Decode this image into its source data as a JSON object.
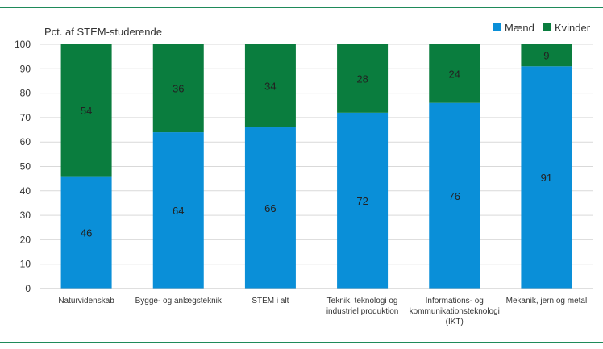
{
  "chart_data": {
    "type": "bar",
    "stacked": true,
    "title": "Pct. af STEM-studerende",
    "categories": [
      [
        "Naturvidenskab"
      ],
      [
        "Bygge- og anlægsteknik"
      ],
      [
        "STEM i alt"
      ],
      [
        "Teknik, teknologi og",
        "industriel produktion"
      ],
      [
        "Informations- og",
        "kommunikationsteknologi",
        "(IKT)"
      ],
      [
        "Mekanik, jern og metal"
      ]
    ],
    "series": [
      {
        "name": "Mænd",
        "color": "#0a8fd8",
        "values": [
          46,
          64,
          66,
          72,
          76,
          91
        ]
      },
      {
        "name": "Kvinder",
        "color": "#0a7d3e",
        "values": [
          54,
          36,
          34,
          28,
          24,
          9
        ]
      }
    ],
    "ylim": [
      0,
      100
    ],
    "yticks": [
      0,
      10,
      20,
      30,
      40,
      50,
      60,
      70,
      80,
      90,
      100
    ],
    "grid": true,
    "legend": "top-right"
  }
}
